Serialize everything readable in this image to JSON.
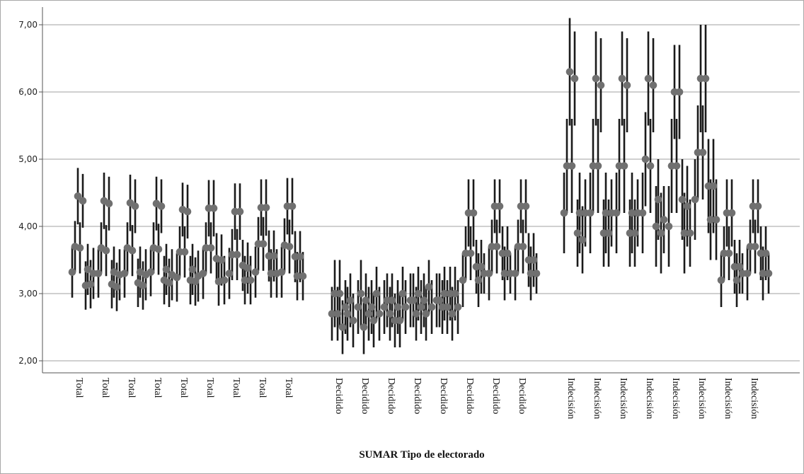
{
  "chart_data": {
    "type": "scatter",
    "subtype": "error-bar",
    "title": "",
    "xlabel": "SUMAR  Tipo de electorado",
    "ylabel": "",
    "ylim": [
      1.8,
      7.3
    ],
    "yticks": [
      "2,00",
      "3,00",
      "4,00",
      "5,00",
      "6,00",
      "7,00"
    ],
    "ytick_values": [
      2,
      3,
      4,
      5,
      6,
      7
    ],
    "grid": "horizontal",
    "legend": "none",
    "colors": {
      "point": "#707070",
      "errorbar": "#1a1a1a",
      "grid": "#b4b4b4",
      "axis": "#555555"
    },
    "categories": [
      "Total",
      "Total",
      "Total",
      "Total",
      "Total",
      "Total",
      "Total",
      "Total",
      "Total",
      "Decidido",
      "Decidido",
      "Decidido",
      "Decidido",
      "Decidido",
      "Decidido",
      "Decidido",
      "Decidido",
      "Indecisión",
      "Indecisión",
      "Indecisión",
      "Indecisión",
      "Indecisión",
      "Indecisión",
      "Indecisión",
      "Indecisión"
    ],
    "groups": [
      {
        "name": "Total",
        "start": 0,
        "count": 9
      },
      {
        "name": "Decidido",
        "start": 9,
        "count": 8
      },
      {
        "name": "Indecisión",
        "start": 17,
        "count": 8
      }
    ],
    "points": [
      [
        3.32,
        3.7,
        4.45,
        3.68,
        4.38,
        3.12,
        3.36,
        3.14,
        3.3
      ],
      [
        3.3,
        3.68,
        4.38,
        3.64,
        4.34,
        3.14,
        3.32,
        3.1,
        3.28
      ],
      [
        3.3,
        3.68,
        4.35,
        3.64,
        4.3,
        3.16,
        3.32,
        3.12,
        3.28
      ],
      [
        3.32,
        3.68,
        4.34,
        3.66,
        4.3,
        3.2,
        3.36,
        3.16,
        3.28
      ],
      [
        3.24,
        3.62,
        4.25,
        3.62,
        4.22,
        3.2,
        3.36,
        3.18,
        3.26
      ],
      [
        3.3,
        3.68,
        4.27,
        3.68,
        4.27,
        3.52,
        3.18,
        3.5,
        3.2
      ],
      [
        3.3,
        3.58,
        4.22,
        3.58,
        4.22,
        3.42,
        3.2,
        3.38,
        3.2
      ],
      [
        3.32,
        3.74,
        4.28,
        3.74,
        4.28,
        3.56,
        3.3,
        3.56,
        3.3
      ],
      [
        3.32,
        3.72,
        4.3,
        3.7,
        4.3,
        3.55,
        3.26,
        3.55,
        3.26
      ],
      [
        2.7,
        3.0,
        2.7,
        3.0,
        2.5,
        2.8,
        2.7,
        2.9,
        2.6
      ],
      [
        2.8,
        3.0,
        2.5,
        2.9,
        2.7,
        2.8,
        2.6,
        3.0,
        2.7
      ],
      [
        2.8,
        2.9,
        2.7,
        2.9,
        2.6,
        2.8,
        2.6,
        3.0,
        2.8
      ],
      [
        2.9,
        2.9,
        2.7,
        3.0,
        2.8,
        2.9,
        2.7,
        3.1,
        2.8
      ],
      [
        2.9,
        2.9,
        2.8,
        3.0,
        2.8,
        3.0,
        2.7,
        3.0,
        2.8
      ],
      [
        3.2,
        3.6,
        4.2,
        3.6,
        4.2,
        3.4,
        3.2,
        3.4,
        3.3
      ],
      [
        3.3,
        3.7,
        4.3,
        3.7,
        4.3,
        3.6,
        3.3,
        3.6,
        3.3
      ],
      [
        3.3,
        3.7,
        4.3,
        3.7,
        4.3,
        3.5,
        3.3,
        3.5,
        3.3
      ],
      [
        4.2,
        4.9,
        6.3,
        4.9,
        6.2,
        3.9,
        4.2,
        3.8,
        4.2
      ],
      [
        4.2,
        4.9,
        6.2,
        4.9,
        6.1,
        3.9,
        4.2,
        3.9,
        4.2
      ],
      [
        4.2,
        4.9,
        6.2,
        4.9,
        6.1,
        3.9,
        4.2,
        3.9,
        4.2
      ],
      [
        4.2,
        5.0,
        6.2,
        4.9,
        6.1,
        4.0,
        4.4,
        3.9,
        4.1
      ],
      [
        4.0,
        4.9,
        6.0,
        4.9,
        6.0,
        4.4,
        3.9,
        4.3,
        3.9
      ],
      [
        4.4,
        5.1,
        6.2,
        5.1,
        6.2,
        4.6,
        4.1,
        4.6,
        4.1
      ],
      [
        3.2,
        3.6,
        4.2,
        3.6,
        4.2,
        3.4,
        3.2,
        3.4,
        3.3
      ],
      [
        3.3,
        3.7,
        4.3,
        3.7,
        4.3,
        3.6,
        3.3,
        3.6,
        3.3
      ]
    ],
    "half_widths": [
      [
        0.38,
        0.38,
        0.42,
        0.38,
        0.4,
        0.36,
        0.38,
        0.36,
        0.38
      ],
      [
        0.36,
        0.38,
        0.42,
        0.38,
        0.4,
        0.36,
        0.38,
        0.36,
        0.38
      ],
      [
        0.36,
        0.38,
        0.42,
        0.38,
        0.4,
        0.36,
        0.38,
        0.36,
        0.38
      ],
      [
        0.36,
        0.38,
        0.4,
        0.38,
        0.4,
        0.36,
        0.38,
        0.36,
        0.38
      ],
      [
        0.36,
        0.38,
        0.4,
        0.38,
        0.4,
        0.36,
        0.38,
        0.36,
        0.38
      ],
      [
        0.38,
        0.38,
        0.42,
        0.38,
        0.42,
        0.38,
        0.36,
        0.38,
        0.36
      ],
      [
        0.38,
        0.38,
        0.42,
        0.38,
        0.42,
        0.38,
        0.36,
        0.38,
        0.36
      ],
      [
        0.38,
        0.4,
        0.42,
        0.4,
        0.42,
        0.38,
        0.36,
        0.38,
        0.36
      ],
      [
        0.38,
        0.4,
        0.42,
        0.4,
        0.42,
        0.38,
        0.36,
        0.38,
        0.36
      ],
      [
        0.4,
        0.5,
        0.4,
        0.5,
        0.4,
        0.4,
        0.4,
        0.4,
        0.4
      ],
      [
        0.4,
        0.5,
        0.4,
        0.4,
        0.4,
        0.4,
        0.4,
        0.4,
        0.4
      ],
      [
        0.4,
        0.4,
        0.4,
        0.4,
        0.4,
        0.4,
        0.4,
        0.4,
        0.4
      ],
      [
        0.4,
        0.4,
        0.4,
        0.4,
        0.4,
        0.4,
        0.4,
        0.4,
        0.4
      ],
      [
        0.4,
        0.4,
        0.4,
        0.4,
        0.4,
        0.4,
        0.4,
        0.4,
        0.4
      ],
      [
        0.4,
        0.4,
        0.5,
        0.4,
        0.5,
        0.4,
        0.4,
        0.4,
        0.3
      ],
      [
        0.4,
        0.4,
        0.4,
        0.4,
        0.4,
        0.4,
        0.4,
        0.4,
        0.3
      ],
      [
        0.4,
        0.4,
        0.4,
        0.4,
        0.4,
        0.4,
        0.4,
        0.4,
        0.3
      ],
      [
        0.6,
        0.7,
        0.8,
        0.7,
        0.7,
        0.5,
        0.6,
        0.5,
        0.5
      ],
      [
        0.6,
        0.7,
        0.7,
        0.7,
        0.7,
        0.5,
        0.6,
        0.5,
        0.5
      ],
      [
        0.6,
        0.7,
        0.7,
        0.7,
        0.7,
        0.5,
        0.6,
        0.5,
        0.5
      ],
      [
        0.6,
        0.7,
        0.7,
        0.7,
        0.7,
        0.6,
        0.6,
        0.6,
        0.5
      ],
      [
        0.6,
        0.7,
        0.7,
        0.7,
        0.7,
        0.6,
        0.6,
        0.6,
        0.5
      ],
      [
        0.6,
        0.7,
        0.8,
        0.7,
        0.8,
        0.7,
        0.6,
        0.7,
        0.6
      ],
      [
        0.4,
        0.4,
        0.5,
        0.4,
        0.5,
        0.4,
        0.4,
        0.4,
        0.3
      ],
      [
        0.4,
        0.4,
        0.4,
        0.4,
        0.4,
        0.4,
        0.4,
        0.4,
        0.3
      ]
    ]
  }
}
